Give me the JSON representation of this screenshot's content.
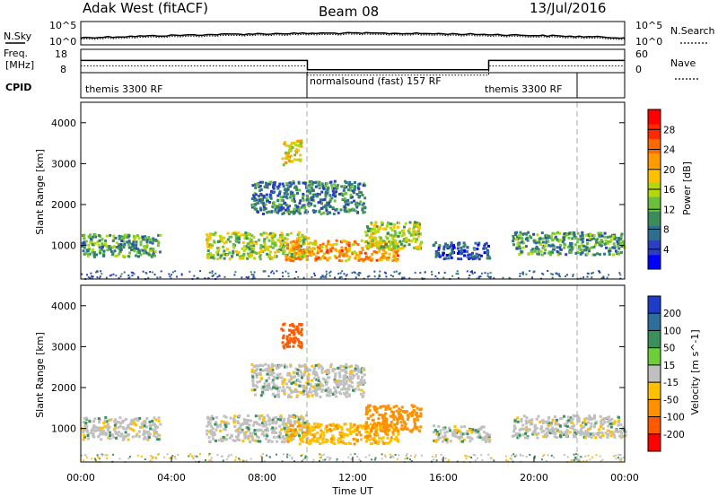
{
  "header": {
    "radar": "Adak West (fitACF)",
    "beam": "Beam 08",
    "date": "13/Jul/2016"
  },
  "noise_panel": {
    "left_label": "N.Sky",
    "right_label": "N.Search",
    "left_ticks": [
      "10^5",
      "10^0"
    ],
    "right_ticks": [
      "10^5",
      "10^0"
    ]
  },
  "freq_panel": {
    "left_label_1": "Freq.",
    "left_label_2": "[MHz]",
    "right_label": "Nave",
    "left_ticks": [
      "18",
      "8"
    ],
    "right_ticks": [
      "60",
      "0"
    ]
  },
  "cpid_panel": {
    "label": "CPID",
    "segments": [
      "themis 3300 RF",
      "normalsound (fast) 157 RF",
      "themis 3300 RF"
    ]
  },
  "power_panel": {
    "ylabel": "Slant Range [km]",
    "yticks": [
      "1000",
      "2000",
      "3000",
      "4000"
    ],
    "colorbar_label": "Power [dB]",
    "colorbar_ticks": [
      "4",
      "8",
      "12",
      "16",
      "20",
      "24",
      "28"
    ],
    "colors": [
      "#0000ff",
      "#2b3fbf",
      "#2e6e8f",
      "#3c8c5a",
      "#6cbf3c",
      "#b4d80e",
      "#ffc000",
      "#ff9a00",
      "#ff6a00",
      "#ff2a00",
      "#ff0000"
    ]
  },
  "velocity_panel": {
    "ylabel": "Slant Range [km]",
    "yticks": [
      "1000",
      "2000",
      "3000",
      "4000"
    ],
    "colorbar_label": "Velocity [m s^-1]",
    "colorbar_ticks": [
      "200",
      "100",
      "50",
      "15",
      "-15",
      "-50",
      "-100",
      "-200"
    ],
    "colors": [
      "#1e3cc8",
      "#2d6e9a",
      "#3a8f5a",
      "#6ccf3a",
      "#c0c0c0",
      "#ffc000",
      "#ff9000",
      "#ff5a00",
      "#ff0000"
    ]
  },
  "xaxis": {
    "ticks": [
      "00:00",
      "04:00",
      "08:00",
      "12:00",
      "16:00",
      "20:00",
      "00:00"
    ],
    "label": "Time UT"
  },
  "chart_data": {
    "type": "heatmap",
    "title": "Adak West (fitACF) Beam 08 13/Jul/2016",
    "xlabel": "Time UT",
    "ylabel": "Slant Range [km]",
    "xlim_hours": [
      0,
      24
    ],
    "ylim_km": [
      180,
      4500
    ],
    "freq_mhz": {
      "segments": [
        {
          "start_h": 0,
          "end_h": 10,
          "value": 14
        },
        {
          "start_h": 10,
          "end_h": 18,
          "value": 10
        },
        {
          "start_h": 18,
          "end_h": 24,
          "value": 14
        }
      ]
    },
    "cpid_boundaries_h": [
      10,
      22
    ],
    "scatter_regions": [
      {
        "t0": 0.0,
        "t1": 3.5,
        "r0": 750,
        "r1": 1300,
        "power": 10,
        "velocity": 0
      },
      {
        "t0": 5.5,
        "t1": 10.0,
        "r0": 700,
        "r1": 1350,
        "power": 14,
        "velocity": 0
      },
      {
        "t0": 9.0,
        "t1": 14.0,
        "r0": 650,
        "r1": 1150,
        "power": 20,
        "velocity": -40
      },
      {
        "t0": 12.5,
        "t1": 15.0,
        "r0": 950,
        "r1": 1600,
        "power": 14,
        "velocity": -70
      },
      {
        "t0": 7.5,
        "t1": 12.5,
        "r0": 1800,
        "r1": 2600,
        "power": 8,
        "velocity": 0
      },
      {
        "t0": 19.0,
        "t1": 24.0,
        "r0": 800,
        "r1": 1350,
        "power": 10,
        "velocity": 0
      },
      {
        "t0": 15.5,
        "t1": 18.0,
        "r0": 700,
        "r1": 1100,
        "power": 6,
        "velocity": 0
      },
      {
        "t0": 8.8,
        "t1": 9.7,
        "r0": 3000,
        "r1": 3600,
        "power": 16,
        "velocity": -180
      }
    ]
  }
}
